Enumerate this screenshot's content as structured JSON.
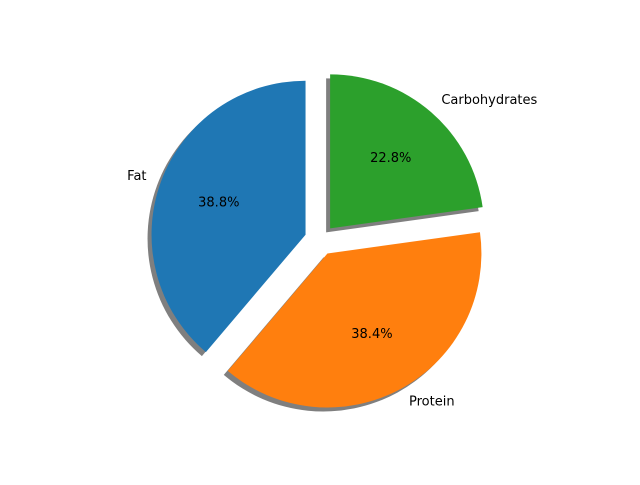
{
  "chart_data": {
    "type": "pie",
    "title": "",
    "slices": [
      {
        "label": "Fat",
        "value": 38.8,
        "pct_label": "38.8%",
        "color": "#1f77b4",
        "exploded": true
      },
      {
        "label": "Protein",
        "value": 38.4,
        "pct_label": "38.4%",
        "color": "#ff7f0e",
        "exploded": true
      },
      {
        "label": "Carbohydrates",
        "value": 22.8,
        "pct_label": "22.8%",
        "color": "#2ca02c",
        "exploded": true
      }
    ],
    "start_angle_deg": 90,
    "direction": "counterclockwise",
    "shadow": true,
    "legend": "none"
  }
}
